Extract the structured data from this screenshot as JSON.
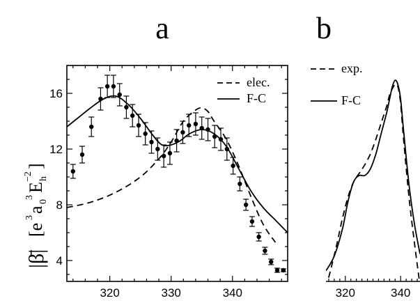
{
  "chart_data": [
    {
      "panel": "a",
      "type": "line",
      "ylabel": {
        "main": "|β̄|",
        "units_prefix": "[e",
        "units_a": "a",
        "units_E": "E",
        "sup1": "3",
        "sup2": "3",
        "sub0": "0",
        "subh": "h",
        "sup3": "−2",
        "close": "]"
      },
      "xlim": [
        313,
        349
      ],
      "ylim": [
        2.5,
        18
      ],
      "xticks": [
        320,
        330,
        340
      ],
      "yticks": [
        4,
        8,
        12,
        16
      ],
      "legend": {
        "placement": "top-right",
        "entries": [
          {
            "label": "elec.",
            "style": "dashed"
          },
          {
            "label": "F-C",
            "style": "solid"
          }
        ]
      },
      "series": [
        {
          "name": "F-C",
          "style": "solid",
          "x": [
            313,
            315,
            317,
            319,
            321,
            323,
            325,
            327,
            328.5,
            330,
            331.5,
            333,
            335,
            337,
            339,
            341,
            343,
            345,
            347,
            349
          ],
          "y": [
            13.6,
            14.3,
            15.0,
            15.6,
            15.8,
            15.2,
            14.2,
            13.0,
            12.3,
            12.3,
            12.6,
            13.1,
            13.4,
            13.1,
            12.2,
            10.6,
            9.0,
            7.8,
            6.9,
            6.0
          ]
        },
        {
          "name": "elec.",
          "style": "dashed",
          "x": [
            313,
            317,
            321,
            325,
            328,
            330,
            332,
            334,
            335,
            336,
            337,
            339,
            341,
            343,
            345,
            347
          ],
          "y": [
            7.8,
            8.2,
            8.9,
            10.0,
            11.3,
            12.5,
            14.0,
            14.8,
            14.95,
            14.7,
            14.0,
            12.7,
            10.8,
            8.6,
            6.6,
            5.3
          ]
        }
      ],
      "measured": {
        "x": [
          314,
          315.5,
          317,
          318.5,
          319.6,
          320.6,
          321.6,
          322.7,
          323.7,
          324.7,
          325.8,
          326.8,
          327.8,
          328.8,
          329.8,
          330.9,
          331.9,
          332.9,
          334,
          335,
          336,
          337.1,
          338.1,
          339.1,
          340.1,
          341.2,
          342.2,
          343.2,
          344.3,
          345.3,
          346.3,
          347.3,
          348.3
        ],
        "y": [
          10.4,
          11.6,
          13.6,
          15.6,
          16.5,
          16.5,
          15.9,
          15.0,
          14.4,
          13.7,
          13.1,
          12.5,
          12.0,
          11.5,
          11.7,
          12.6,
          13.2,
          13.7,
          13.8,
          13.5,
          13.4,
          12.9,
          12.7,
          12.0,
          10.8,
          9.5,
          8.0,
          6.8,
          5.7,
          4.7,
          3.9,
          3.3,
          3.3
        ],
        "err": [
          0.5,
          0.6,
          0.7,
          0.8,
          0.8,
          0.8,
          0.8,
          0.8,
          0.8,
          0.8,
          0.8,
          0.8,
          0.8,
          0.8,
          0.8,
          0.8,
          0.8,
          0.8,
          0.8,
          0.8,
          0.8,
          0.8,
          0.8,
          0.8,
          0.6,
          0.5,
          0.4,
          0.35,
          0.3,
          0.25,
          0.2,
          0.15,
          0.1
        ]
      }
    },
    {
      "panel": "b",
      "type": "line",
      "xlim": [
        313,
        347
      ],
      "ylim": [
        0,
        1
      ],
      "xticks": [
        320,
        340
      ],
      "legend": {
        "placement": "top-left",
        "entries": [
          {
            "label": "exp.",
            "style": "dashed"
          },
          {
            "label": "F-C",
            "style": "solid"
          }
        ]
      },
      "series": [
        {
          "name": "F-C",
          "style": "solid",
          "x": [
            313,
            316,
            319,
            321,
            323,
            325,
            327,
            329,
            331,
            333,
            335,
            336,
            337,
            338,
            339,
            340,
            341,
            343,
            345,
            347
          ],
          "y": [
            0.05,
            0.12,
            0.25,
            0.38,
            0.47,
            0.5,
            0.5,
            0.53,
            0.6,
            0.7,
            0.8,
            0.86,
            0.92,
            0.95,
            0.93,
            0.86,
            0.72,
            0.46,
            0.27,
            0.13
          ]
        },
        {
          "name": "exp.",
          "style": "dashed",
          "x": [
            313,
            315,
            317,
            319,
            321,
            323,
            325,
            327,
            329,
            331,
            333,
            335,
            336,
            337,
            338,
            339,
            340,
            341,
            343,
            345,
            347
          ],
          "y": [
            -0.03,
            0.07,
            0.18,
            0.3,
            0.4,
            0.47,
            0.51,
            0.55,
            0.6,
            0.67,
            0.75,
            0.83,
            0.88,
            0.91,
            0.93,
            0.92,
            0.84,
            0.68,
            0.4,
            0.18,
            -0.02
          ]
        }
      ]
    }
  ]
}
